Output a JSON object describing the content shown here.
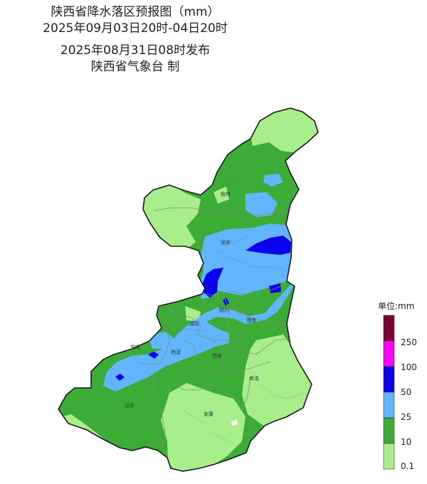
{
  "title": {
    "line1": "陕西省降水落区预报图（mm）",
    "line2": "2025年09月03日20时-04日20时",
    "line3": "2025年08月31日08时发布",
    "line4": "陕西省气象台 制"
  },
  "cities": [
    "榆林",
    "延安",
    "铜川",
    "渭南",
    "咸阳",
    "宝鸡",
    "杨凌",
    "西安",
    "商洛",
    "汉中",
    "安康"
  ],
  "legend": {
    "title": "单位:mm",
    "labels": [
      "250",
      "100",
      "50",
      "25",
      "10",
      "0.1"
    ],
    "bins": [
      {
        "range": "0.1-10",
        "color": "#a8ef8c"
      },
      {
        "range": "10-25",
        "color": "#3cac37"
      },
      {
        "range": "25-50",
        "color": "#62b5ff"
      },
      {
        "range": "50-100",
        "color": "#0a00ee"
      },
      {
        "range": "100-250",
        "color": "#fd00f7"
      },
      {
        "range": ">250",
        "color": "#7d0037"
      }
    ]
  }
}
